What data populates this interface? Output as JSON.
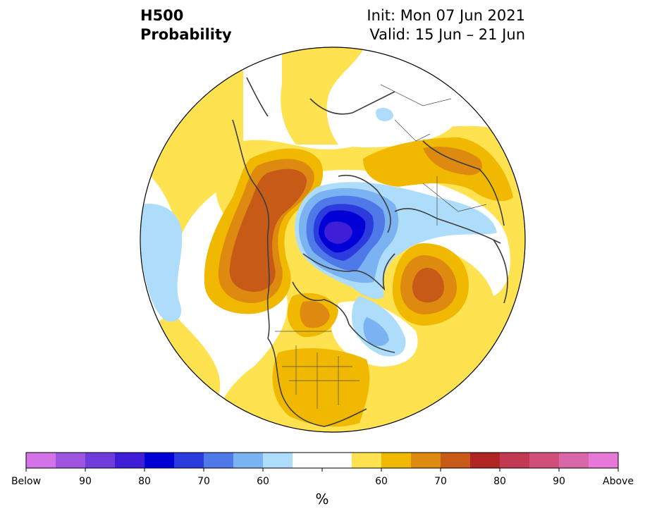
{
  "header": {
    "variable": "H500",
    "product": "Probability",
    "init": "Init: Mon 07 Jun 2021",
    "valid": "Valid: 15 Jun – 21 Jun"
  },
  "colorbar": {
    "unit": "%",
    "labels": [
      "Below",
      "90",
      "80",
      "70",
      "60",
      "60",
      "70",
      "80",
      "90",
      "Above"
    ],
    "colors": [
      "#d473e8",
      "#9d55e0",
      "#6f3ddc",
      "#3f1ed8",
      "#0000d6",
      "#2b3bde",
      "#4f78e8",
      "#7bb3f2",
      "#aedcfb",
      "#ffffff",
      "#ffffff",
      "#fee250",
      "#f1b800",
      "#de8a10",
      "#c85a18",
      "#b02424",
      "#c23a52",
      "#d0507a",
      "#d966a6",
      "#e878d8"
    ]
  },
  "map": {
    "projection": "north-polar-stereographic",
    "features": [
      "coastlines",
      "country-borders",
      "us-state-borders"
    ],
    "anomalies": [
      {
        "region": "Canadian Arctic / Greenland",
        "sign": "below",
        "max_probability": "85"
      },
      {
        "region": "Alaska / western Canada",
        "sign": "above",
        "max_probability": "75"
      },
      {
        "region": "North Atlantic",
        "sign": "above",
        "max_probability": "75"
      },
      {
        "region": "United States",
        "sign": "above",
        "max_probability": "65"
      },
      {
        "region": "Northern Europe / Scandinavia",
        "sign": "above",
        "max_probability": "65"
      },
      {
        "region": "North Pacific",
        "sign": "below",
        "max_probability": "60"
      }
    ]
  }
}
